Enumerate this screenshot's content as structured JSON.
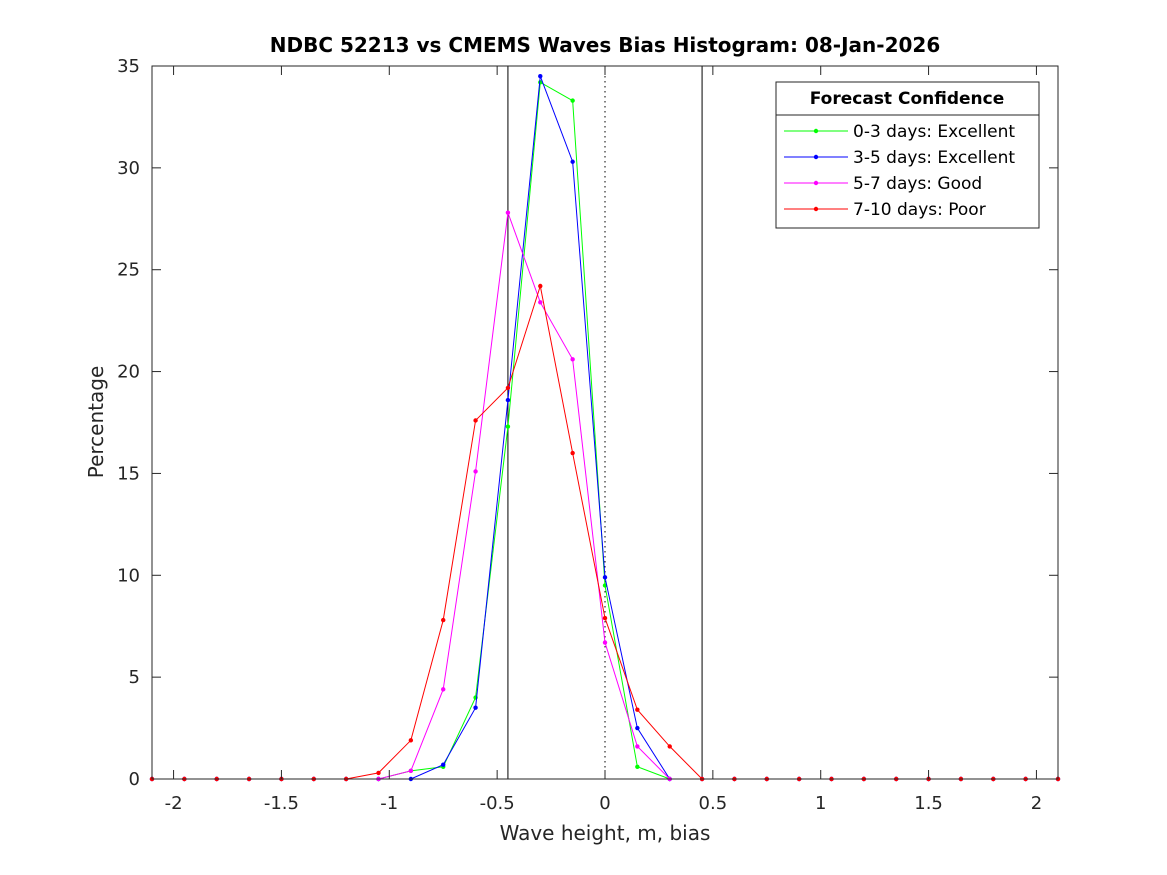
{
  "chart_data": {
    "type": "line",
    "title": "NDBC 52213 vs CMEMS Waves Bias Histogram: 08-Jan-2026",
    "xlabel": "Wave height, m, bias",
    "ylabel": "Percentage",
    "xlim": [
      -2.1,
      2.1
    ],
    "ylim": [
      0,
      35
    ],
    "xticks": [
      -2,
      -1.5,
      -1,
      -0.5,
      0,
      0.5,
      1,
      1.5,
      2
    ],
    "xtick_labels": [
      "-2",
      "-1.5",
      "-1",
      "-0.5",
      "0",
      "0.5",
      "1",
      "1.5",
      "2"
    ],
    "yticks": [
      0,
      5,
      10,
      15,
      20,
      25,
      30,
      35
    ],
    "ytick_labels": [
      "0",
      "5",
      "10",
      "15",
      "20",
      "25",
      "30",
      "35"
    ],
    "reference_lines": {
      "solid": [
        -0.45,
        0.45
      ],
      "dotted": [
        0
      ]
    },
    "legend": {
      "title": "Forecast Confidence",
      "location": "top-right"
    },
    "x": [
      -2.1,
      -1.95,
      -1.8,
      -1.65,
      -1.5,
      -1.35,
      -1.2,
      -1.05,
      -0.9,
      -0.75,
      -0.6,
      -0.45,
      -0.3,
      -0.15,
      0,
      0.15,
      0.3,
      0.45,
      0.6,
      0.75,
      0.9,
      1.05,
      1.2,
      1.35,
      1.5,
      1.65,
      1.8,
      1.95,
      2.1
    ],
    "series": [
      {
        "name": "0-3 days: Excellent",
        "color": "#00ff00",
        "values": [
          0,
          0,
          0,
          0,
          0,
          0,
          0,
          0,
          0.4,
          0.6,
          4.0,
          17.3,
          34.2,
          33.3,
          9.5,
          0.6,
          0,
          0,
          0,
          0,
          0,
          0,
          0,
          0,
          0,
          0,
          0,
          0,
          0
        ]
      },
      {
        "name": "3-5 days: Excellent",
        "color": "#0000ff",
        "values": [
          0,
          0,
          0,
          0,
          0,
          0,
          0,
          0,
          0,
          0.7,
          3.5,
          18.6,
          34.5,
          30.3,
          9.9,
          2.5,
          0,
          0,
          0,
          0,
          0,
          0,
          0,
          0,
          0,
          0,
          0,
          0,
          0
        ]
      },
      {
        "name": "5-7 days: Good",
        "color": "#ff00ff",
        "values": [
          0,
          0,
          0,
          0,
          0,
          0,
          0,
          0,
          0.4,
          4.4,
          15.1,
          27.8,
          23.4,
          20.6,
          6.7,
          1.6,
          0,
          0,
          0,
          0,
          0,
          0,
          0,
          0,
          0,
          0,
          0,
          0,
          0
        ]
      },
      {
        "name": "7-10 days: Poor",
        "color": "#ff0000",
        "values": [
          0,
          0,
          0,
          0,
          0,
          0,
          0,
          0.3,
          1.9,
          7.8,
          17.6,
          19.2,
          24.2,
          16.0,
          7.9,
          3.4,
          1.6,
          0,
          0,
          0,
          0,
          0,
          0,
          0,
          0,
          0,
          0,
          0,
          0
        ]
      }
    ]
  }
}
